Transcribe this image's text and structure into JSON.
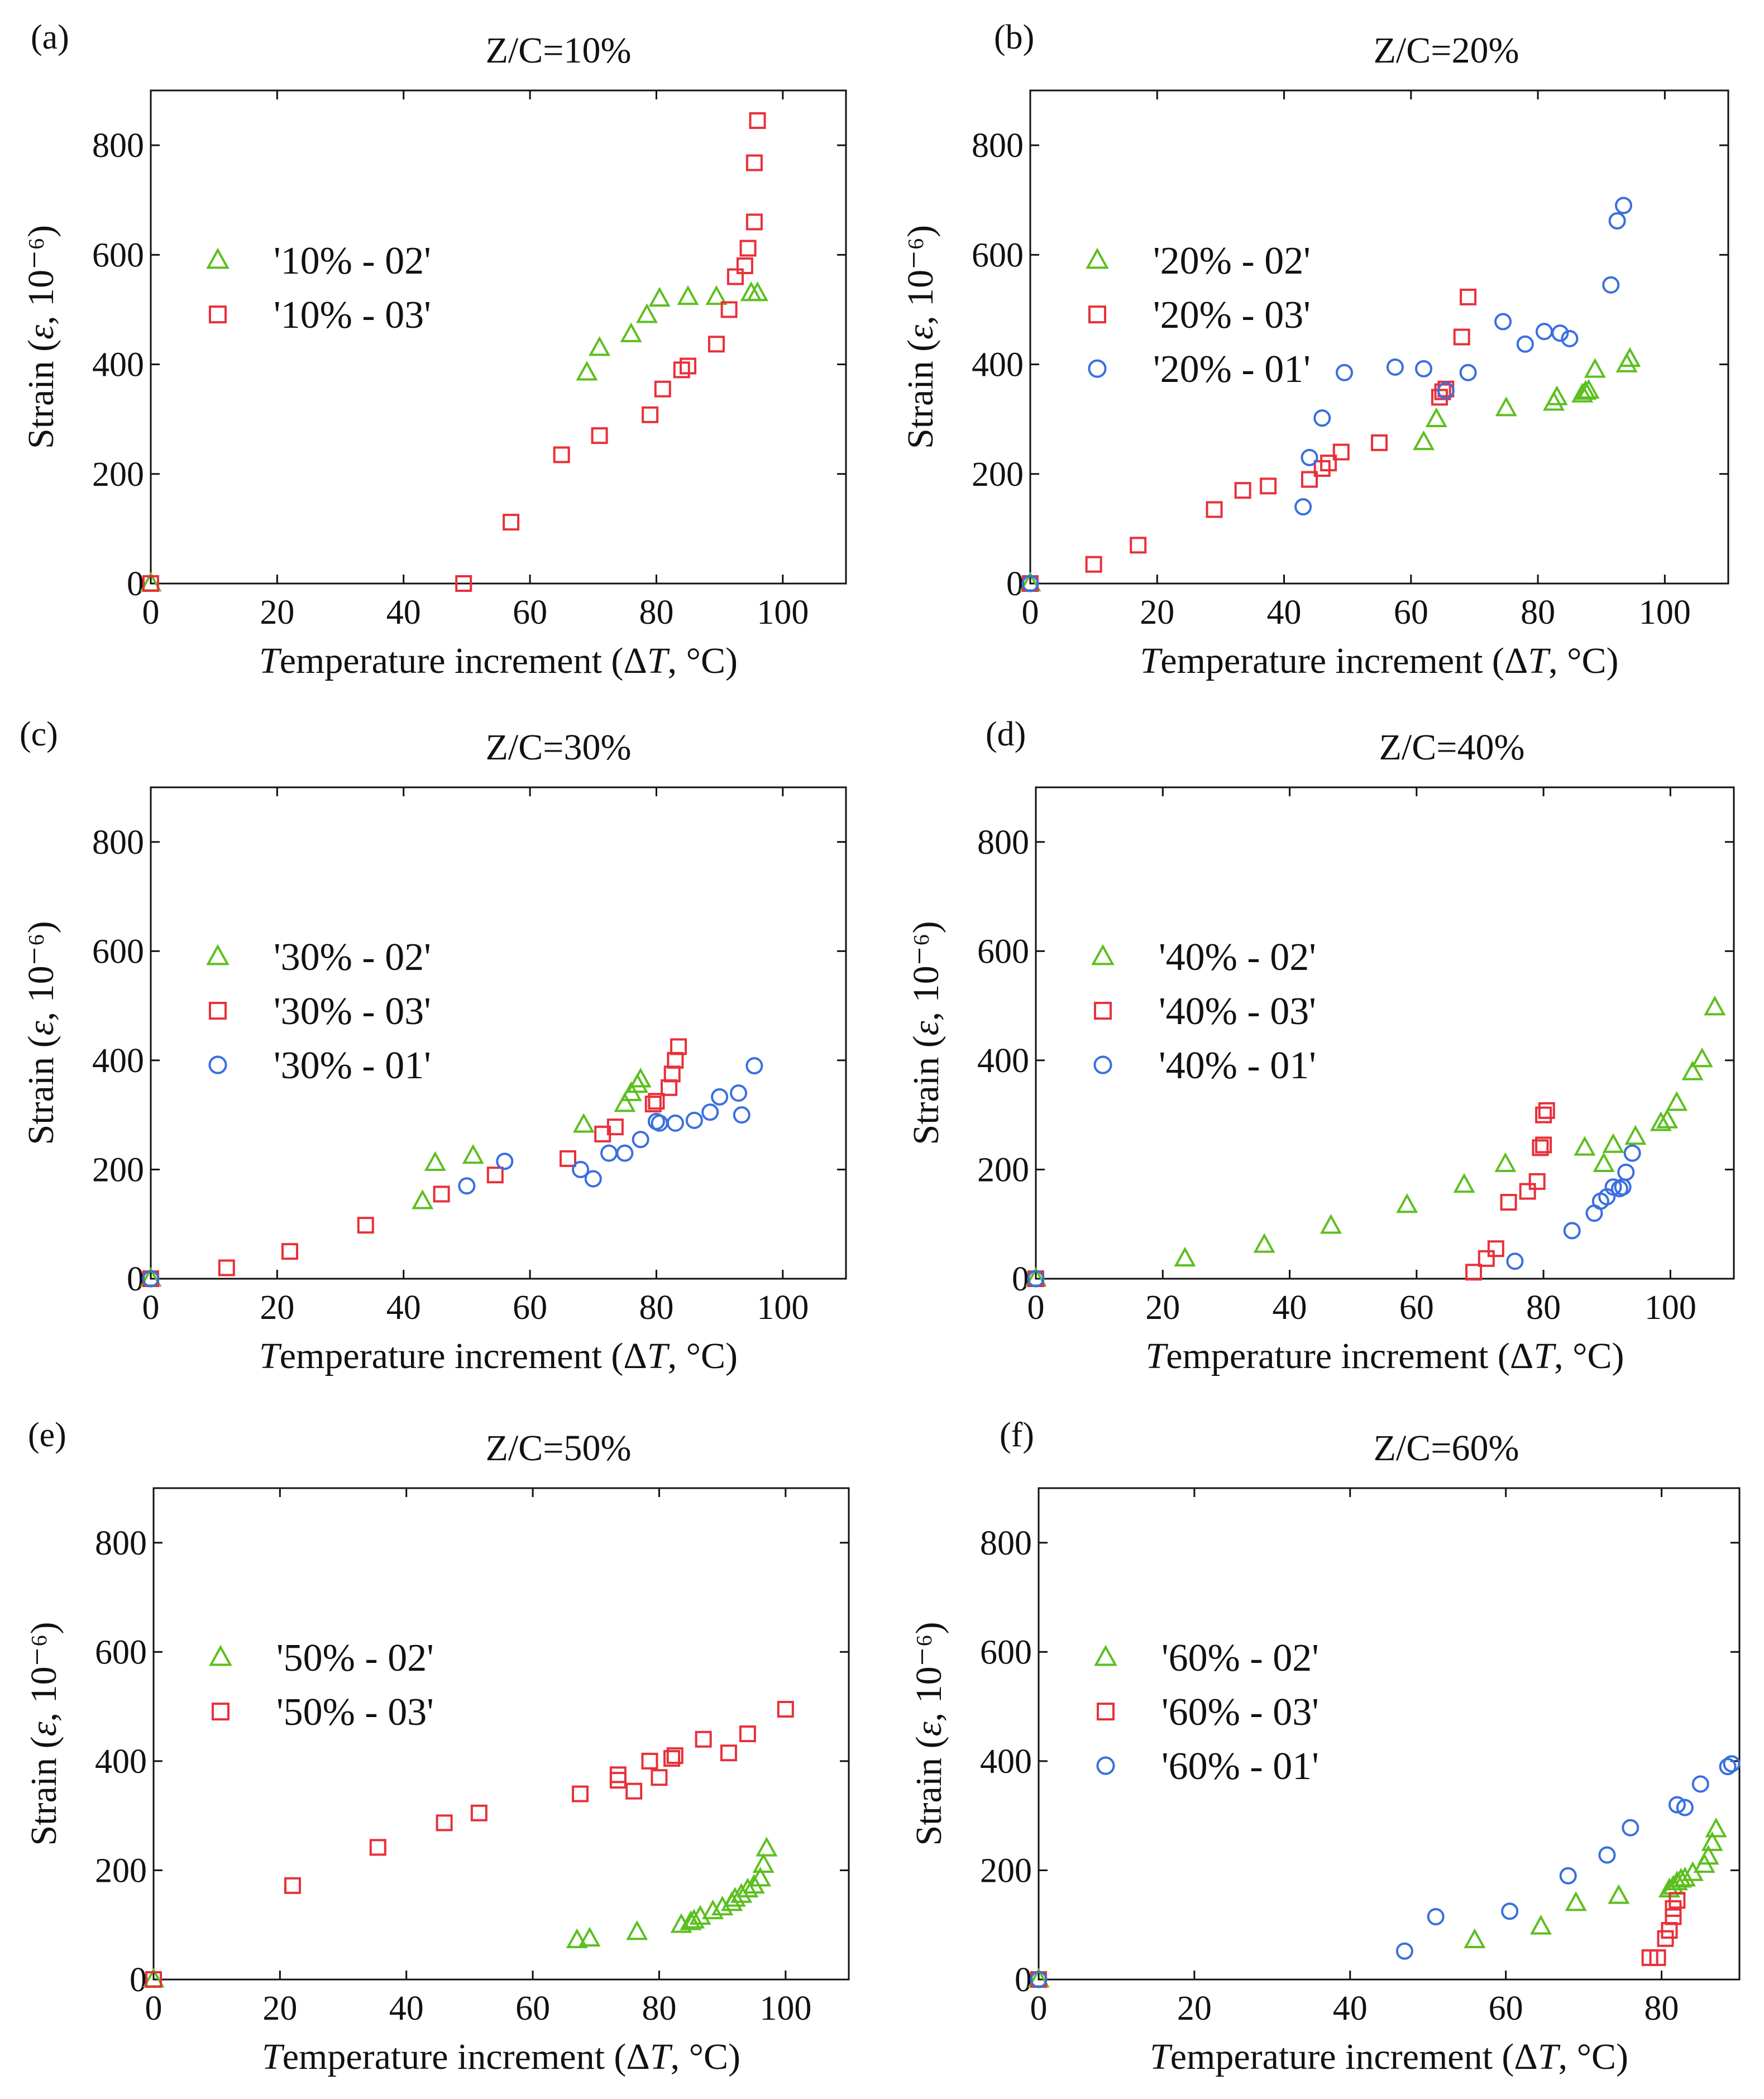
{
  "colors": {
    "green": "#5cbf1f",
    "red": "#e8303a",
    "blue": "#3a6fe0",
    "axis": "#111111"
  },
  "marker_shapes": {
    "02": "triangle",
    "03": "square",
    "01": "circle"
  },
  "chart_data": [
    {
      "type": "scatter",
      "panel": "(a)",
      "title": "Z/C=10%",
      "xlabel": "Temperature increment (ΔT, °C)",
      "ylabel": "Strain (ε, 10⁻⁶)",
      "xlim": [
        0,
        110
      ],
      "ylim": [
        0,
        900
      ],
      "xticks": [
        0,
        20,
        40,
        60,
        80,
        100
      ],
      "yticks": [
        0,
        200,
        400,
        600,
        800
      ],
      "legend": [
        "'10% - 02'",
        "'10% - 03'"
      ],
      "series": [
        {
          "name": "'10% - 02'",
          "id": "02",
          "color": "green",
          "x": [
            0,
            69,
            71,
            76,
            78.5,
            80.5,
            85,
            89.5,
            95,
            96
          ],
          "y": [
            0,
            385,
            430,
            455,
            490,
            520,
            523,
            523,
            530,
            530
          ]
        },
        {
          "name": "'10% - 03'",
          "id": "03",
          "color": "red",
          "x": [
            0,
            49.5,
            57,
            65,
            71,
            79,
            81,
            84,
            85,
            89.5,
            91.5,
            92.5,
            94,
            94.5,
            95.5,
            95.5,
            96
          ],
          "y": [
            0,
            0,
            112,
            235,
            270,
            308,
            355,
            390,
            397,
            437,
            500,
            560,
            580,
            612,
            660,
            768,
            845
          ]
        }
      ]
    },
    {
      "type": "scatter",
      "panel": "(b)",
      "title": "Z/C=20%",
      "xlabel": "Temperature increment (ΔT, °C)",
      "ylabel": "Strain (ε, 10⁻⁶)",
      "xlim": [
        0,
        110
      ],
      "ylim": [
        0,
        900
      ],
      "xticks": [
        0,
        20,
        40,
        60,
        80,
        100
      ],
      "yticks": [
        0,
        200,
        400,
        600,
        800
      ],
      "legend": [
        "'20% - 02'",
        "'20% - 03'",
        "'20% - 01'"
      ],
      "series": [
        {
          "name": "'20% - 02'",
          "id": "02",
          "color": "green",
          "x": [
            0,
            62,
            64,
            75,
            82.5,
            83,
            87,
            87.5,
            88,
            89,
            94,
            94.5
          ],
          "y": [
            0,
            258,
            300,
            320,
            330,
            340,
            345,
            350,
            352,
            390,
            400,
            410
          ]
        },
        {
          "name": "'20% - 03'",
          "id": "03",
          "color": "red",
          "x": [
            0,
            10,
            17,
            29,
            33.5,
            37.5,
            44,
            46,
            47,
            49,
            55,
            64.5,
            65,
            65.5,
            68,
            69
          ],
          "y": [
            0,
            35,
            70,
            135,
            170,
            178,
            190,
            210,
            220,
            240,
            257,
            340,
            350,
            355,
            450,
            523
          ]
        },
        {
          "name": "'20% - 01'",
          "id": "01",
          "color": "blue",
          "x": [
            0,
            43,
            44,
            46,
            49.5,
            57.5,
            62,
            65.5,
            69,
            74.5,
            78,
            81,
            83.5,
            85,
            91.5,
            92.5,
            93.5
          ],
          "y": [
            0,
            140,
            230,
            302,
            385,
            395,
            392,
            352,
            385,
            478,
            437,
            460,
            457,
            447,
            545,
            662,
            690
          ]
        }
      ]
    },
    {
      "type": "scatter",
      "panel": "(c)",
      "title": "Z/C=30%",
      "xlabel": "Temperature increment (ΔT, °C)",
      "ylabel": "Strain (ε, 10⁻⁶)",
      "xlim": [
        0,
        110
      ],
      "ylim": [
        0,
        900
      ],
      "xticks": [
        0,
        20,
        40,
        60,
        80,
        100
      ],
      "yticks": [
        0,
        200,
        400,
        600,
        800
      ],
      "legend": [
        "'30% - 02'",
        "'30% - 03'",
        "'30% - 01'"
      ],
      "series": [
        {
          "name": "'30% - 02'",
          "id": "02",
          "color": "green",
          "x": [
            0,
            43,
            45,
            51,
            68.5,
            75,
            76,
            77,
            77.5
          ],
          "y": [
            0,
            142,
            212,
            225,
            282,
            320,
            340,
            355,
            365
          ]
        },
        {
          "name": "'30% - 03'",
          "id": "03",
          "color": "red",
          "x": [
            0,
            12,
            22,
            34,
            46,
            54.5,
            66,
            71.5,
            73.5,
            79.5,
            80,
            82,
            82.5,
            83,
            83.5
          ],
          "y": [
            0,
            20,
            50,
            98,
            155,
            190,
            220,
            265,
            278,
            320,
            325,
            350,
            375,
            400,
            425
          ]
        },
        {
          "name": "'30% - 01'",
          "id": "01",
          "color": "blue",
          "x": [
            0,
            50,
            56,
            68,
            70,
            72.5,
            75,
            77.5,
            80,
            80.5,
            83,
            86,
            88.5,
            90,
            93,
            93.5,
            95.5
          ],
          "y": [
            0,
            170,
            215,
            200,
            183,
            230,
            230,
            255,
            288,
            285,
            285,
            290,
            305,
            333,
            340,
            300,
            390
          ]
        }
      ]
    },
    {
      "type": "scatter",
      "panel": "(d)",
      "title": "Z/C=40%",
      "xlabel": "Temperature increment (ΔT, °C)",
      "ylabel": "Strain (ε, 10⁻⁶)",
      "xlim": [
        0,
        110
      ],
      "ylim": [
        0,
        900
      ],
      "xticks": [
        0,
        20,
        40,
        60,
        80,
        100
      ],
      "yticks": [
        0,
        200,
        400,
        600,
        800
      ],
      "legend": [
        "'40% - 02'",
        "'40% - 03'",
        "'40% - 01'"
      ],
      "series": [
        {
          "name": "'40% - 02'",
          "id": "02",
          "color": "green",
          "x": [
            0,
            23.5,
            36,
            46.5,
            58.5,
            67.5,
            74,
            86.5,
            89.5,
            91,
            94.5,
            98.5,
            99.5,
            101,
            103.5,
            105,
            107
          ],
          "y": [
            0,
            37,
            62,
            97,
            135,
            172,
            210,
            240,
            210,
            245,
            260,
            285,
            290,
            322,
            378,
            402,
            497
          ]
        },
        {
          "name": "'40% - 03'",
          "id": "03",
          "color": "red",
          "x": [
            0,
            69,
            71,
            72.5,
            74.5,
            77.5,
            79,
            79.5,
            80,
            80,
            80.5
          ],
          "y": [
            0,
            12,
            37,
            55,
            140,
            160,
            178,
            240,
            245,
            300,
            308
          ]
        },
        {
          "name": "'40% - 01'",
          "id": "01",
          "color": "blue",
          "x": [
            0,
            75.5,
            84.5,
            88,
            89,
            90,
            91,
            92,
            92.5,
            93,
            94
          ],
          "y": [
            0,
            32,
            88,
            120,
            142,
            150,
            168,
            165,
            168,
            195,
            230
          ]
        }
      ]
    },
    {
      "type": "scatter",
      "panel": "(e)",
      "title": "Z/C=50%",
      "xlabel": "Temperature increment (ΔT, °C)",
      "ylabel": "Strain (ε, 10⁻⁶)",
      "xlim": [
        0,
        110
      ],
      "ylim": [
        0,
        900
      ],
      "xticks": [
        0,
        20,
        40,
        60,
        80,
        100
      ],
      "yticks": [
        0,
        200,
        400,
        600,
        800
      ],
      "legend": [
        "'50% - 02'",
        "'50% - 03'"
      ],
      "series": [
        {
          "name": "'50% - 02'",
          "id": "02",
          "color": "green",
          "x": [
            0,
            67,
            69,
            76.5,
            83.5,
            85,
            85.5,
            86.5,
            88.5,
            90,
            91.5,
            92,
            93,
            94,
            95,
            96,
            96.5,
            97
          ],
          "y": [
            0,
            72,
            75,
            87,
            100,
            105,
            108,
            115,
            125,
            132,
            140,
            148,
            155,
            165,
            172,
            185,
            210,
            240
          ]
        },
        {
          "name": "'50% - 03'",
          "id": "03",
          "color": "red",
          "x": [
            0,
            22,
            35.5,
            46,
            51.5,
            67.5,
            73.5,
            73.5,
            76,
            78.5,
            80,
            82,
            82.5,
            87,
            91,
            94,
            100
          ],
          "y": [
            0,
            172,
            242,
            287,
            305,
            340,
            365,
            375,
            345,
            400,
            370,
            405,
            410,
            440,
            415,
            450,
            495
          ]
        }
      ]
    },
    {
      "type": "scatter",
      "panel": "(f)",
      "title": "Z/C=60%",
      "xlabel": "Temperature increment (ΔT, °C)",
      "ylabel": "Strain (ε, 10⁻⁶)",
      "xlim": [
        0,
        90
      ],
      "ylim": [
        0,
        900
      ],
      "xticks": [
        0,
        20,
        40,
        60,
        80
      ],
      "yticks": [
        0,
        200,
        400,
        600,
        800
      ],
      "legend": [
        "'60% - 02'",
        "'60% - 03'",
        "'60% - 01'"
      ],
      "series": [
        {
          "name": "'60% - 02'",
          "id": "02",
          "color": "green",
          "x": [
            0,
            56,
            64.5,
            69,
            74.5,
            81,
            81.5,
            82,
            82.5,
            83,
            84,
            85.5,
            86,
            86.5,
            87
          ],
          "y": [
            0,
            72,
            97,
            140,
            153,
            165,
            170,
            178,
            183,
            185,
            195,
            210,
            225,
            250,
            275
          ]
        },
        {
          "name": "'60% - 03'",
          "id": "03",
          "color": "red",
          "x": [
            0,
            78.5,
            79.5,
            80.5,
            81,
            81.5,
            81.5,
            82
          ],
          "y": [
            0,
            40,
            40,
            75,
            90,
            115,
            130,
            145
          ]
        },
        {
          "name": "'60% - 01'",
          "id": "01",
          "color": "blue",
          "x": [
            0,
            47,
            51,
            60.5,
            68,
            73,
            76,
            82,
            83,
            85,
            88.5,
            89
          ],
          "y": [
            0,
            52,
            115,
            125,
            190,
            228,
            278,
            320,
            315,
            358,
            390,
            395
          ]
        }
      ]
    }
  ]
}
